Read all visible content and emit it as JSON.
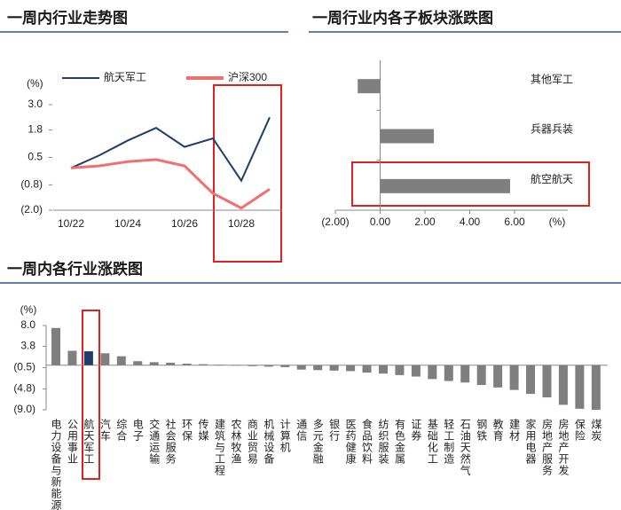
{
  "chart_data": [
    {
      "type": "line",
      "title": "一周内行业走势图",
      "ylabel": "(%)",
      "categories": [
        "10/22",
        null,
        "10/24",
        null,
        "10/26",
        null,
        "10/28",
        null
      ],
      "series": [
        {
          "name": "航天军工",
          "color": "#1f3d6e",
          "values": [
            0.0,
            0.6,
            1.3,
            1.9,
            1.0,
            1.4,
            -0.6,
            2.4
          ]
        },
        {
          "name": "沪深300",
          "color": "#f07070",
          "values": [
            0.0,
            0.1,
            0.3,
            0.4,
            0.1,
            -1.2,
            -1.9,
            -1.0
          ]
        }
      ],
      "ylim": [
        -2.0,
        3.0
      ],
      "yticks": [
        {
          "value": 3.0,
          "label": "3.0"
        },
        {
          "value": 1.8,
          "label": "1.8"
        },
        {
          "value": 0.5,
          "label": "0.5"
        },
        {
          "value": -0.8,
          "label": "(0.8)"
        },
        {
          "value": -2.0,
          "label": "(2.0)"
        }
      ]
    },
    {
      "type": "hbar",
      "title": "一周行业内各子板块涨跌图",
      "xlabel": "(%)",
      "categories": [
        "其他军工",
        "兵器兵装",
        "航空航天"
      ],
      "values": [
        -1.0,
        2.4,
        5.8
      ],
      "color": "#7f7f7f",
      "xlim": [
        -2,
        6
      ],
      "xticks": [
        {
          "value": -2,
          "label": "(2.00)"
        },
        {
          "value": 0,
          "label": "0.00"
        },
        {
          "value": 2,
          "label": "2.00"
        },
        {
          "value": 4,
          "label": "4.00"
        },
        {
          "value": 6,
          "label": "6.00"
        }
      ]
    },
    {
      "type": "bar",
      "title": "一周内各行业涨跌图",
      "ylabel": "(%)",
      "categories": [
        "电力设备与新能源",
        "公用事业",
        "航天军工",
        "汽车",
        "综合",
        "电子",
        "交通运输",
        "社会服务",
        "环保",
        "传媒",
        "建筑与工程",
        "农林牧渔",
        "商业贸易",
        "机械设备",
        "计算机",
        "通信",
        "多元金融",
        "银行",
        "医药健康",
        "食品饮料",
        "纺织服装",
        "有色金属",
        "证券",
        "基础化工",
        "轻工制造",
        "石油天然气",
        "钢铁",
        "教育",
        "建材",
        "家用电器",
        "房地产服务",
        "房地产开发",
        "保险",
        "煤炭"
      ],
      "values": [
        7.5,
        2.9,
        2.8,
        2.4,
        1.8,
        0.8,
        0.6,
        0.5,
        0.3,
        0.2,
        0.1,
        -0.1,
        -0.2,
        -0.3,
        -0.4,
        -0.9,
        -1.0,
        -1.1,
        -1.2,
        -1.5,
        -1.7,
        -2.0,
        -2.3,
        -2.8,
        -3.2,
        -3.5,
        -4.0,
        -4.5,
        -5.0,
        -5.8,
        -6.5,
        -8.0,
        -8.8,
        -9.0
      ],
      "color": "#7f7f7f",
      "highlight_color": "#1f3d6e",
      "highlight": "航天军工",
      "ylim": [
        -9.0,
        8.0
      ],
      "yticks": [
        {
          "value": 8.0,
          "label": "8.0"
        },
        {
          "value": 3.8,
          "label": "3.8"
        },
        {
          "value": -0.5,
          "label": "(0.5)"
        },
        {
          "value": -4.8,
          "label": "(4.8)"
        },
        {
          "value": -9.0,
          "label": "(9.0)"
        }
      ]
    }
  ]
}
